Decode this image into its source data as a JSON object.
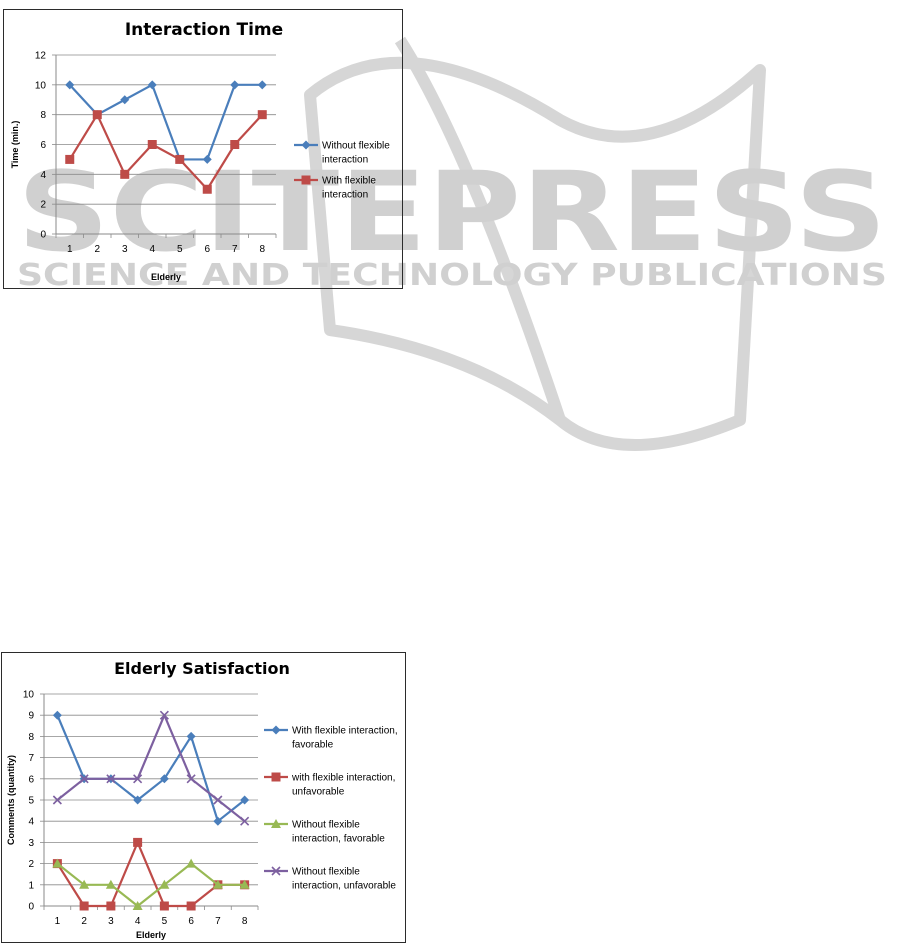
{
  "watermark": {
    "logo_text": "SCITEPRESS",
    "tagline": "SCIENCE AND TECHNOLOGY PUBLICATIONS"
  },
  "chart_data": [
    {
      "type": "line",
      "title": "Interaction Time",
      "xlabel": "Elderly",
      "ylabel": "Time (min.)",
      "categories": [
        "1",
        "2",
        "3",
        "4",
        "5",
        "6",
        "7",
        "8"
      ],
      "ylim": [
        0,
        12
      ],
      "yticks": [
        "0",
        "2",
        "4",
        "6",
        "8",
        "10",
        "12"
      ],
      "grid": true,
      "legend_position": "right",
      "series": [
        {
          "name_lines": [
            "Without flexible",
            "interaction"
          ],
          "values": [
            10,
            8,
            9,
            10,
            5,
            5,
            10,
            10
          ],
          "color": "#4a7ebb",
          "marker": "diamond"
        },
        {
          "name_lines": [
            "With flexible",
            "interaction"
          ],
          "values": [
            5,
            8,
            4,
            6,
            5,
            3,
            6,
            8
          ],
          "color": "#be4b48",
          "marker": "square"
        }
      ]
    },
    {
      "type": "line",
      "title": "Elderly Satisfaction",
      "xlabel": "Elderly",
      "ylabel": "Comments (quantity)",
      "categories": [
        "1",
        "2",
        "3",
        "4",
        "5",
        "6",
        "7",
        "8"
      ],
      "ylim": [
        0,
        10
      ],
      "yticks": [
        "0",
        "1",
        "2",
        "3",
        "4",
        "5",
        "6",
        "7",
        "8",
        "9",
        "10"
      ],
      "grid": true,
      "legend_position": "right",
      "series": [
        {
          "name_lines": [
            "With flexible interaction,",
            "favorable"
          ],
          "values": [
            9,
            6,
            6,
            5,
            6,
            8,
            4,
            5
          ],
          "color": "#4a7ebb",
          "marker": "diamond"
        },
        {
          "name_lines": [
            "with flexible interaction,",
            "unfavorable"
          ],
          "values": [
            2,
            0,
            0,
            3,
            0,
            0,
            1,
            1
          ],
          "color": "#be4b48",
          "marker": "square"
        },
        {
          "name_lines": [
            "Without flexible",
            "interaction, favorable"
          ],
          "values": [
            2,
            1,
            1,
            0,
            1,
            2,
            1,
            1
          ],
          "color": "#98b954",
          "marker": "triangle"
        },
        {
          "name_lines": [
            "Without flexible",
            "interaction, unfavorable"
          ],
          "values": [
            5,
            6,
            6,
            6,
            9,
            6,
            5,
            4
          ],
          "color": "#7d60a0",
          "marker": "x"
        }
      ]
    }
  ]
}
